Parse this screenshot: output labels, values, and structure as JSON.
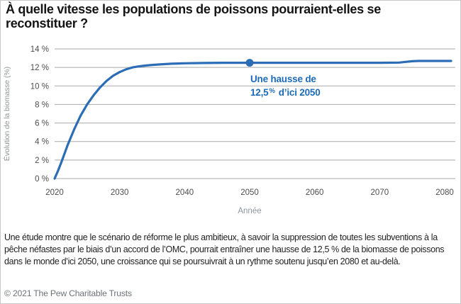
{
  "header": {
    "title": "À quelle vitesse les populations de poissons pourraient-elles se reconstituer ?"
  },
  "chart_data": {
    "type": "line",
    "title": "",
    "xlabel": "Année",
    "ylabel": "Évolution de la biomasse (%)",
    "x_ticks": [
      2020,
      2030,
      2040,
      2050,
      2060,
      2070,
      2080
    ],
    "x_tick_labels": [
      "2020",
      "2030",
      "2040",
      "2050",
      "2060",
      "2070",
      "2080"
    ],
    "y_ticks": [
      0,
      2,
      4,
      6,
      8,
      10,
      12,
      14
    ],
    "y_tick_labels": [
      "0 %",
      "2 %",
      "4 %",
      "6 %",
      "8 %",
      "10 %",
      "12 %",
      "14 %"
    ],
    "xlim": [
      2020,
      2080
    ],
    "ylim": [
      0,
      14
    ],
    "grid": "horizontal-only",
    "legend": "none",
    "colors": {
      "line": "#2c6db6",
      "annotation": "#1d6bb8",
      "gridline": "#a9a9a9",
      "tick_label": "#4d4d4d",
      "axis_title": "#8f959b"
    },
    "series": [
      {
        "name": "Évolution de la biomasse (%)",
        "points": [
          [
            2020,
            0
          ],
          [
            2020.5,
            0.8
          ],
          [
            2021,
            1.7
          ],
          [
            2022,
            3.6
          ],
          [
            2023,
            5.3
          ],
          [
            2024,
            6.8
          ],
          [
            2025,
            8.0
          ],
          [
            2026,
            9.0
          ],
          [
            2027,
            9.85
          ],
          [
            2028,
            10.55
          ],
          [
            2029,
            11.1
          ],
          [
            2030,
            11.5
          ],
          [
            2031,
            11.8
          ],
          [
            2032,
            12.0
          ],
          [
            2033,
            12.12
          ],
          [
            2034,
            12.2
          ],
          [
            2035,
            12.27
          ],
          [
            2036,
            12.32
          ],
          [
            2038,
            12.4
          ],
          [
            2040,
            12.45
          ],
          [
            2043,
            12.48
          ],
          [
            2046,
            12.5
          ],
          [
            2050,
            12.5
          ],
          [
            2055,
            12.5
          ],
          [
            2060,
            12.5
          ],
          [
            2065,
            12.5
          ],
          [
            2070,
            12.5
          ],
          [
            2073,
            12.52
          ],
          [
            2074,
            12.6
          ],
          [
            2075,
            12.67
          ],
          [
            2076,
            12.7
          ],
          [
            2080,
            12.7
          ]
        ]
      }
    ],
    "highlight_point": {
      "x": 2050,
      "y": 12.5
    },
    "annotation": {
      "line1": "Une hausse de",
      "value": "12,5",
      "percent": "%",
      "suffix": "d’ici 2050"
    }
  },
  "caption": {
    "text": "Une étude montre que le scénario de réforme le plus ambitieux, à savoir la suppression de toutes les subventions à la pêche néfastes par le biais d’un accord de l’OMC, pourrait entraîner une hausse de 12,5 % de la biomasse de poissons dans le monde d’ici 2050, une croissance qui se poursuivrait à un rythme soutenu jusqu’en 2080 et au-delà."
  },
  "footer": {
    "copyright": "© 2021 The Pew Charitable Trusts"
  }
}
